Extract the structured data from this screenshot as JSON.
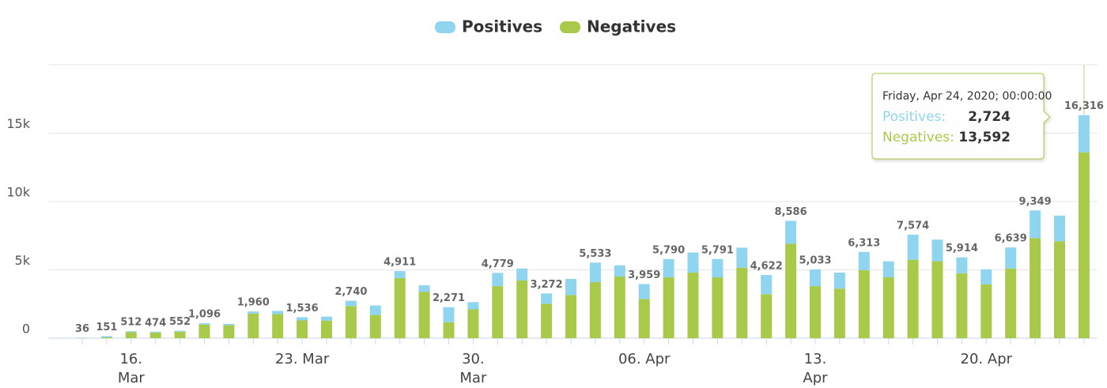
{
  "chart_data": {
    "type": "stacked_bar",
    "categories": [
      null,
      null,
      "16. Mar",
      null,
      null,
      null,
      null,
      null,
      null,
      "23. Mar",
      null,
      null,
      null,
      null,
      null,
      null,
      "30. Mar",
      null,
      null,
      null,
      null,
      null,
      null,
      "06. Apr",
      null,
      null,
      null,
      null,
      null,
      null,
      "13. Apr",
      null,
      null,
      null,
      null,
      null,
      null,
      "20. Apr",
      null,
      null,
      null,
      null
    ],
    "series": [
      {
        "name": "Positives",
        "color": "#90d5ef",
        "values": [
          16,
          91,
          72,
          54,
          72,
          96,
          100,
          160,
          240,
          236,
          290,
          390,
          700,
          511,
          470,
          1100,
          530,
          969,
          880,
          752,
          1180,
          1433,
          820,
          1089,
          1340,
          1470,
          1341,
          1460,
          1402,
          1676,
          1223,
          1170,
          1333,
          1180,
          1834,
          1580,
          1164,
          1110,
          1539,
          2019,
          1880,
          2724
        ]
      },
      {
        "name": "Negatives",
        "color": "#a9c94a",
        "values": [
          20,
          60,
          440,
          420,
          480,
          1000,
          950,
          1800,
          1760,
          1300,
          1290,
          2350,
          1700,
          4400,
          3400,
          1170,
          2110,
          3810,
          4220,
          2520,
          3160,
          4100,
          4510,
          2870,
          4450,
          4800,
          4450,
          5160,
          3220,
          6910,
          3810,
          3630,
          4980,
          4450,
          5740,
          5630,
          4750,
          3930,
          5100,
          7330,
          7090,
          13592
        ]
      }
    ],
    "total_labels": [
      "36",
      "151",
      "512",
      "474",
      "552",
      "1,096",
      null,
      "1,960",
      null,
      "1,536",
      null,
      "2,740",
      null,
      "4,911",
      null,
      "2,271",
      null,
      "4,779",
      null,
      "3,272",
      null,
      "5,533",
      null,
      "3,959",
      "5,790",
      null,
      "5,791",
      null,
      "4,622",
      "8,586",
      "5,033",
      null,
      "6,313",
      null,
      "7,574",
      null,
      "5,914",
      null,
      "6,639",
      "9,349",
      null,
      "16,316"
    ],
    "ylim": [
      0,
      20000
    ],
    "yticks": [
      0,
      {
        "value": 5000,
        "label": "5k"
      },
      {
        "value": 10000,
        "label": "10k"
      },
      {
        "value": 15000,
        "label": "15k"
      }
    ],
    "grid": true,
    "legend": "top",
    "tooltip": {
      "title": "Friday, Apr 24, 2020; 00:00:00",
      "rows": [
        {
          "label": "Positives:",
          "value": "2,724"
        },
        {
          "label": "Negatives:",
          "value": "13,592"
        }
      ]
    }
  }
}
